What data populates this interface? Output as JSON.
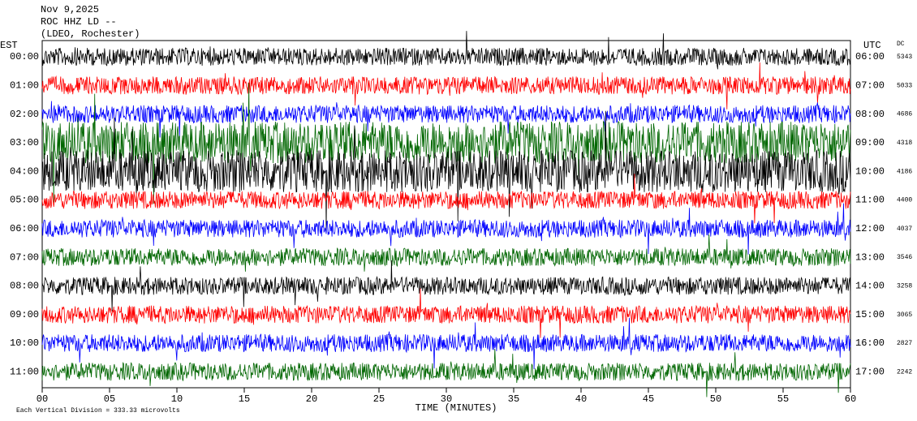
{
  "chart_data": {
    "type": "helicorder",
    "title_lines": [
      "Nov 9,2025",
      "ROC HHZ LD --",
      "(LDEO, Rochester)"
    ],
    "left_axis_label": "EST",
    "right_axis_label": "UTC",
    "dc_label": "DC",
    "x_label": "TIME (MINUTES)",
    "footnote": "Each Vertical Division = 333.33 microvolts",
    "xlim": [
      0,
      60
    ],
    "xticks": [
      {
        "value": 0,
        "label": "00"
      },
      {
        "value": 5,
        "label": "05"
      },
      10,
      15,
      20,
      25,
      30,
      35,
      40,
      45,
      50,
      55,
      60
    ],
    "rows": [
      {
        "est": "00:00",
        "utc": "06:00",
        "dc": "5343",
        "color": "#000000"
      },
      {
        "est": "01:00",
        "utc": "07:00",
        "dc": "5033",
        "color": "#ff0000"
      },
      {
        "est": "02:00",
        "utc": "08:00",
        "dc": "4686",
        "color": "#0000ff"
      },
      {
        "est": "03:00",
        "utc": "09:00",
        "dc": "4318",
        "color": "#006600"
      },
      {
        "est": "04:00",
        "utc": "10:00",
        "dc": "4186",
        "color": "#000000"
      },
      {
        "est": "05:00",
        "utc": "11:00",
        "dc": "4400",
        "color": "#ff0000"
      },
      {
        "est": "06:00",
        "utc": "12:00",
        "dc": "4037",
        "color": "#0000ff"
      },
      {
        "est": "07:00",
        "utc": "13:00",
        "dc": "3546",
        "color": "#006600"
      },
      {
        "est": "08:00",
        "utc": "14:00",
        "dc": "3258",
        "color": "#000000"
      },
      {
        "est": "09:00",
        "utc": "15:00",
        "dc": "3065",
        "color": "#ff0000"
      },
      {
        "est": "10:00",
        "utc": "16:00",
        "dc": "2827",
        "color": "#0000ff"
      },
      {
        "est": "11:00",
        "utc": "17:00",
        "dc": "2242",
        "color": "#006600"
      }
    ]
  }
}
